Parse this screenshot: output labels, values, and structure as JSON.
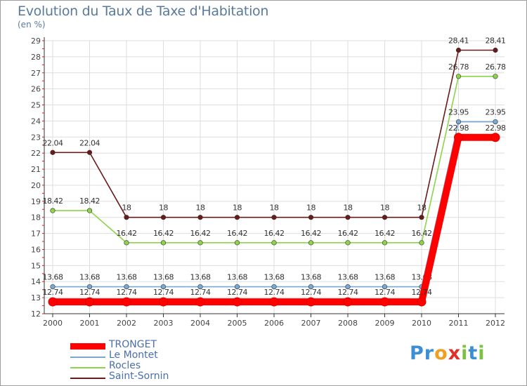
{
  "header": {
    "title": "Evolution du Taux de Taxe d'Habitation",
    "unit": "(en %)"
  },
  "logo": {
    "text": "Proxiti",
    "letters": [
      {
        "ch": "P",
        "color": "#3d8fd4"
      },
      {
        "ch": "r",
        "color": "#3d8fd4"
      },
      {
        "ch": "o",
        "color": "#f0a020"
      },
      {
        "ch": "x",
        "color": "#e0302a"
      },
      {
        "ch": "i",
        "color": "#7cc242"
      },
      {
        "ch": "t",
        "color": "#3d8fd4"
      },
      {
        "ch": "i",
        "color": "#7cc242"
      }
    ]
  },
  "chart_data": {
    "type": "line",
    "title": "Evolution du Taux de Taxe d'Habitation",
    "ylabel": "(en %)",
    "xlabel": "",
    "x": [
      "2000",
      "2001",
      "2002",
      "2003",
      "2004",
      "2005",
      "2006",
      "2007",
      "2008",
      "2009",
      "2010",
      "2011",
      "2012"
    ],
    "ylim": [
      12,
      29
    ],
    "yticks": [
      12,
      13,
      14,
      15,
      16,
      17,
      18,
      19,
      20,
      21,
      22,
      23,
      24,
      25,
      26,
      27,
      28,
      29
    ],
    "grid": true,
    "legend_position": "bottom-left",
    "series": [
      {
        "name": "Saint-Sornin",
        "color": "#6b1a1a",
        "values": [
          22.04,
          22.04,
          18,
          18,
          18,
          18,
          18,
          18,
          18,
          18,
          18,
          28.41,
          28.41
        ],
        "labels": [
          "22.04",
          "22.04",
          "18",
          "18",
          "18",
          "18",
          "18",
          "18",
          "18",
          "18",
          "18",
          "28.41",
          "28.41"
        ]
      },
      {
        "name": "Rocles",
        "color": "#8ed44a",
        "values": [
          18.42,
          18.42,
          16.42,
          16.42,
          16.42,
          16.42,
          16.42,
          16.42,
          16.42,
          16.42,
          16.42,
          26.78,
          26.78
        ],
        "labels": [
          "18.42",
          "18.42",
          "16.42",
          "16.42",
          "16.42",
          "16.42",
          "16.42",
          "16.42",
          "16.42",
          "16.42",
          "16.42",
          "26.78",
          "26.78"
        ]
      },
      {
        "name": "Le Montet",
        "color": "#7aa8d0",
        "values": [
          13.68,
          13.68,
          13.68,
          13.68,
          13.68,
          13.68,
          13.68,
          13.68,
          13.68,
          13.68,
          13.68,
          23.95,
          23.95
        ],
        "labels": [
          "13.68",
          "13.68",
          "13.68",
          "13.68",
          "13.68",
          "13.68",
          "13.68",
          "13.68",
          "13.68",
          "13.68",
          "13.68",
          "23.95",
          "23.95"
        ]
      },
      {
        "name": "TRONGET",
        "color": "#ff0000",
        "values": [
          12.74,
          12.74,
          12.74,
          12.74,
          12.74,
          12.74,
          12.74,
          12.74,
          12.74,
          12.74,
          12.74,
          22.98,
          22.98
        ],
        "labels": [
          "12.74",
          "12.74",
          "12.74",
          "12.74",
          "12.74",
          "12.74",
          "12.74",
          "12.74",
          "12.74",
          "12.74",
          "12.74",
          "22.98",
          "22.98"
        ]
      }
    ],
    "legend": [
      "TRONGET",
      "Le Montet",
      "Rocles",
      "Saint-Sornin"
    ]
  }
}
